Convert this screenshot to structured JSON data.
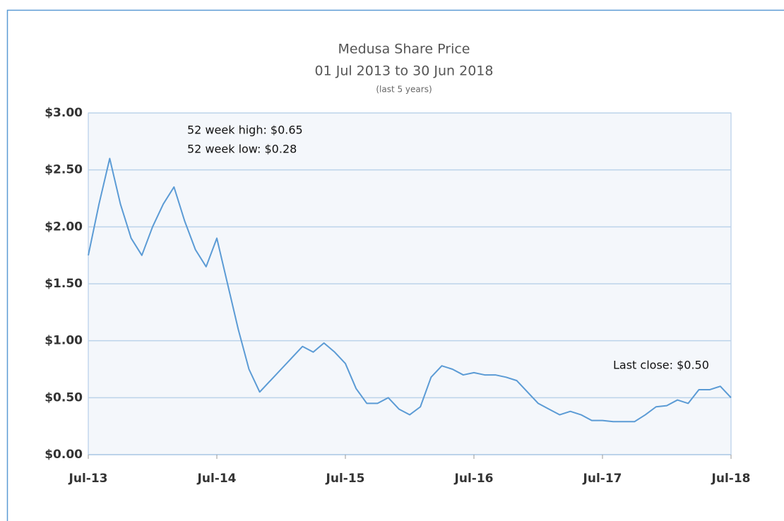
{
  "chart_data": {
    "type": "line",
    "title": "Medusa Share Price",
    "subtitle": "01 Jul 2013 to 30 Jun 2018",
    "caption": "(last 5 years)",
    "annotations": [
      "52 week high: $0.65",
      "52 week low: $0.28",
      "Last close: $0.50"
    ],
    "x": [
      "2013-07",
      "2013-08",
      "2013-09",
      "2013-10",
      "2013-11",
      "2013-12",
      "2014-01",
      "2014-02",
      "2014-03",
      "2014-04",
      "2014-05",
      "2014-06",
      "2014-07",
      "2014-08",
      "2014-09",
      "2014-10",
      "2014-11",
      "2014-12",
      "2015-01",
      "2015-02",
      "2015-03",
      "2015-04",
      "2015-05",
      "2015-06",
      "2015-07",
      "2015-08",
      "2015-09",
      "2015-10",
      "2015-11",
      "2015-12",
      "2016-01",
      "2016-02",
      "2016-03",
      "2016-04",
      "2016-05",
      "2016-06",
      "2016-07",
      "2016-08",
      "2016-09",
      "2016-10",
      "2016-11",
      "2016-12",
      "2017-01",
      "2017-02",
      "2017-03",
      "2017-04",
      "2017-05",
      "2017-06",
      "2017-07",
      "2017-08",
      "2017-09",
      "2017-10",
      "2017-11",
      "2017-12",
      "2018-01",
      "2018-02",
      "2018-03",
      "2018-04",
      "2018-05",
      "2018-06",
      "2018-07"
    ],
    "series": [
      {
        "name": "Medusa",
        "color": "#5b9bd5",
        "values": [
          1.75,
          2.2,
          2.6,
          2.2,
          1.9,
          1.75,
          2.0,
          2.2,
          2.35,
          2.05,
          1.8,
          1.65,
          1.9,
          1.5,
          1.1,
          0.75,
          0.55,
          0.65,
          0.75,
          0.85,
          0.95,
          0.9,
          0.98,
          0.9,
          0.8,
          0.58,
          0.45,
          0.45,
          0.5,
          0.4,
          0.35,
          0.42,
          0.68,
          0.78,
          0.75,
          0.7,
          0.72,
          0.7,
          0.7,
          0.68,
          0.65,
          0.55,
          0.45,
          0.4,
          0.35,
          0.38,
          0.35,
          0.3,
          0.3,
          0.29,
          0.29,
          0.29,
          0.35,
          0.42,
          0.43,
          0.48,
          0.45,
          0.57,
          0.57,
          0.6,
          0.5
        ]
      }
    ],
    "xlim": [
      "2013-07",
      "2018-07"
    ],
    "xticks": [
      {
        "value": "2013-07",
        "label": "Jul-13"
      },
      {
        "value": "2014-07",
        "label": "Jul-14"
      },
      {
        "value": "2015-07",
        "label": "Jul-15"
      },
      {
        "value": "2016-07",
        "label": "Jul-16"
      },
      {
        "value": "2017-07",
        "label": "Jul-17"
      },
      {
        "value": "2018-07",
        "label": "Jul-18"
      }
    ],
    "ylim": [
      0,
      3
    ],
    "yticks": [
      {
        "value": 0,
        "label": "$0.00"
      },
      {
        "value": 0.5,
        "label": "$0.50"
      },
      {
        "value": 1,
        "label": "$1.00"
      },
      {
        "value": 1.5,
        "label": "$1.50"
      },
      {
        "value": 2,
        "label": "$2.00"
      },
      {
        "value": 2.5,
        "label": "$2.50"
      },
      {
        "value": 3,
        "label": "$3.00"
      }
    ],
    "grid": true
  }
}
